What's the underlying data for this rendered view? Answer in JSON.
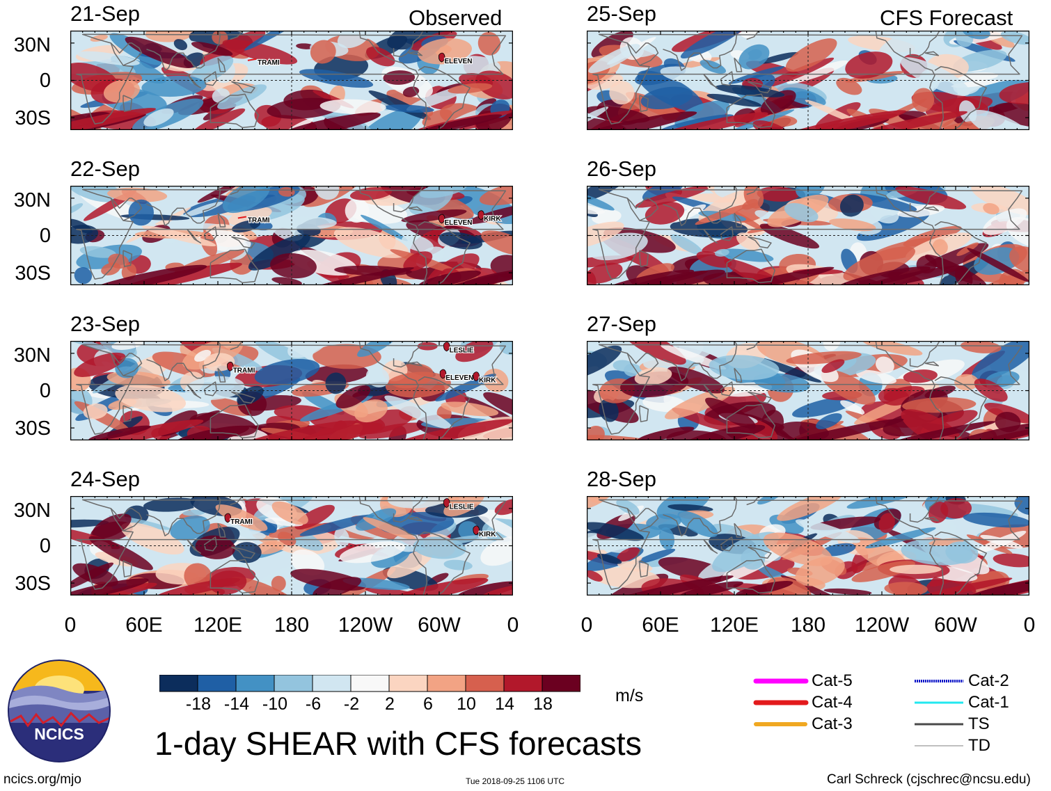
{
  "chart_data": {
    "type": "heatmap",
    "title": "1-day SHEAR with CFS forecasts",
    "observed_title": "Observed",
    "forecast_title": "CFS Forecast",
    "units": "m/s",
    "ylabels": [
      "30N",
      "0",
      "30S"
    ],
    "xlabels": [
      "0",
      "60E",
      "120E",
      "180",
      "120W",
      "60W",
      "0"
    ],
    "observed_dates": [
      "21-Sep",
      "22-Sep",
      "23-Sep",
      "24-Sep"
    ],
    "forecast_dates": [
      "25-Sep",
      "26-Sep",
      "27-Sep",
      "28-Sep"
    ],
    "colorbar": {
      "tick_labels": [
        "-18",
        "-14",
        "-10",
        "-6",
        "-2",
        "2",
        "6",
        "10",
        "14",
        "18"
      ],
      "colors": [
        "#0c2d5c",
        "#1f5fa5",
        "#4391c4",
        "#93c4de",
        "#d1e6f1",
        "#f8f8f8",
        "#fbd5c1",
        "#f2a384",
        "#d6604e",
        "#b2182b",
        "#6b0020"
      ]
    },
    "storms": [
      {
        "panel": 0,
        "name": "TRAMI"
      },
      {
        "panel": 0,
        "name": "ELEVEN"
      },
      {
        "panel": 1,
        "name": "TRAMI"
      },
      {
        "panel": 1,
        "name": "ELEVEN"
      },
      {
        "panel": 1,
        "name": "KIRK"
      },
      {
        "panel": 2,
        "name": "LESLIE"
      },
      {
        "panel": 2,
        "name": "TRAMI"
      },
      {
        "panel": 2,
        "name": "ELEVEN"
      },
      {
        "panel": 2,
        "name": "KIRK"
      },
      {
        "panel": 3,
        "name": "LESLIE"
      },
      {
        "panel": 3,
        "name": "TRAMI"
      },
      {
        "panel": 3,
        "name": "KIRK"
      }
    ],
    "legend": [
      {
        "label": "Cat-5",
        "color": "#ff00ff"
      },
      {
        "label": "Cat-4",
        "color": "#e31a1c"
      },
      {
        "label": "Cat-3",
        "color": "#f0a821"
      },
      {
        "label": "Cat-2",
        "color": "#0a14c8"
      },
      {
        "label": "Cat-1",
        "color": "#22e8f0"
      },
      {
        "label": "TS",
        "color": "#4a4a4a"
      },
      {
        "label": "TD",
        "color": "#999999"
      }
    ]
  },
  "logo": {
    "text": "NCICS"
  },
  "footer": {
    "url": "ncics.org/mjo",
    "timestamp": "Tue 2018-09-25 1106 UTC",
    "credit": "Carl Schreck (cjschrec@ncsu.edu)"
  }
}
